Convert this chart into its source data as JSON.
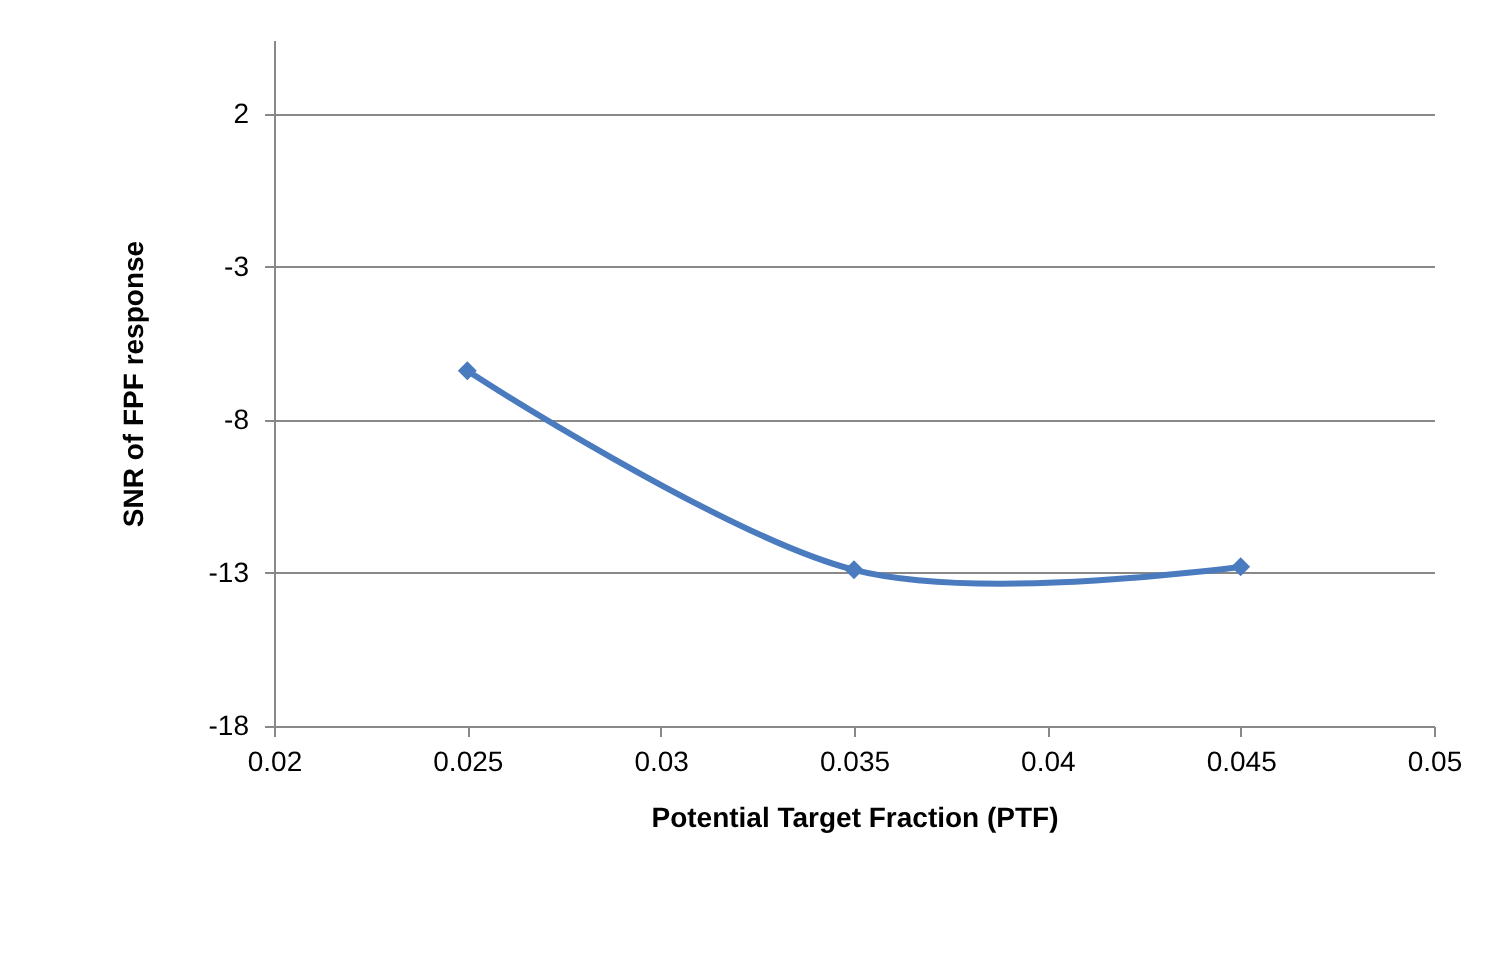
{
  "chart_data": {
    "type": "line",
    "xlabel": "Potential Target Fraction (PTF)",
    "ylabel": "SNR of FPF response",
    "x": [
      0.025,
      0.035,
      0.045
    ],
    "series": [
      {
        "color": "#4a7bbf",
        "values": [
          -6.4,
          -12.9,
          -12.8
        ]
      }
    ],
    "xlim": [
      0.02,
      0.05
    ],
    "xticks": [
      0.02,
      0.025,
      0.03,
      0.035,
      0.04,
      0.045,
      0.05
    ],
    "ylim": [
      -18,
      4.4
    ],
    "yticks": [
      -18,
      -13,
      -8,
      -3,
      2
    ],
    "grid": "y",
    "marker": "diamond",
    "line_style": "solid"
  }
}
